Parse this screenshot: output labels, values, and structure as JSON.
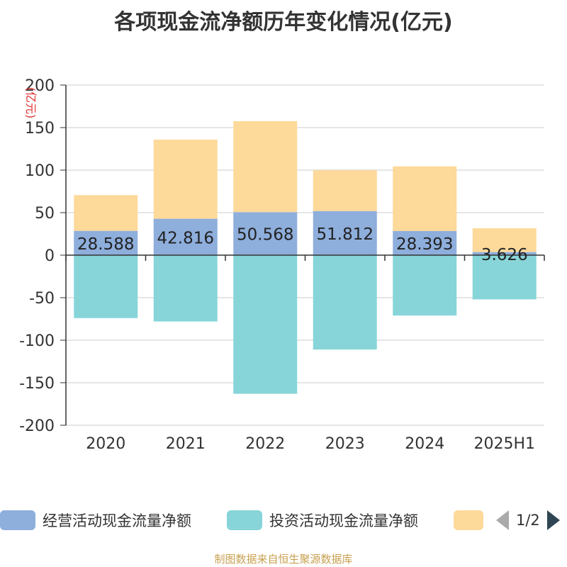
{
  "title": "各项现金流净额历年变化情况(亿元)",
  "source": "制图数据来自恒生聚源数据库",
  "chart_data": {
    "type": "bar",
    "stacked": true,
    "unit_label": "(亿元)",
    "categories": [
      "2020",
      "2021",
      "2022",
      "2023",
      "2024",
      "2025H1"
    ],
    "y_ticks": [
      "200",
      "150",
      "100",
      "50",
      "0",
      "-50",
      "-100",
      "-150",
      "-200"
    ],
    "ylim": [
      -200,
      200
    ],
    "grid": true,
    "legend_position": "bottom",
    "series": [
      {
        "name": "经营活动现金流量净额",
        "color": "#8eaedc",
        "values": [
          28.588,
          42.816,
          50.568,
          51.812,
          28.393,
          3.626
        ],
        "labels": [
          "28.588",
          "42.816",
          "50.568",
          "51.812",
          "28.393",
          "3.626"
        ]
      },
      {
        "name": "投资活动现金流量净额",
        "color": "#87d5d8",
        "values": [
          -74,
          -78,
          -163,
          -111,
          -71,
          -52
        ]
      },
      {
        "name": "",
        "color": "#fdd99a",
        "values": [
          42,
          93,
          107,
          48,
          76,
          28
        ]
      }
    ]
  },
  "legend": {
    "items": [
      {
        "label": "经营活动现金流量净额",
        "color": "#8eaedc"
      },
      {
        "label": "投资活动现金流量净额",
        "color": "#87d5d8"
      },
      {
        "label": "",
        "color": "#fdd99a"
      }
    ],
    "page": "1/2"
  }
}
